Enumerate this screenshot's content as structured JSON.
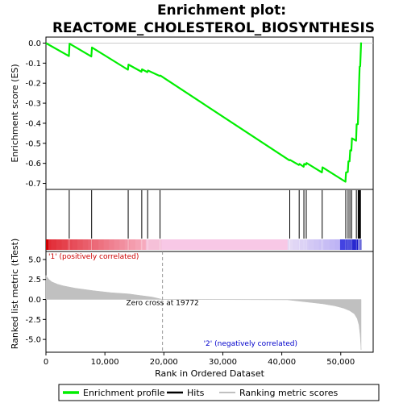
{
  "chart_data": {
    "type": "line",
    "title_line1": "Enrichment plot:",
    "title_line2": "REACTOME_CHOLESTEROL_BIOSYNTHESIS",
    "es_panel": {
      "ylabel": "Enrichment score (ES)",
      "ylim": [
        -0.73,
        0.03
      ],
      "yticks": [
        0.0,
        -0.1,
        -0.2,
        -0.3,
        -0.4,
        -0.5,
        -0.6,
        -0.7
      ],
      "ytick_labels": [
        "0.0",
        "-0.1",
        "-0.2",
        "-0.3",
        "-0.4",
        "-0.5",
        "-0.6",
        "-0.7"
      ],
      "color": "#00ee00",
      "points": [
        [
          0,
          0.0
        ],
        [
          3900,
          -0.065
        ],
        [
          4000,
          -0.003
        ],
        [
          7700,
          -0.067
        ],
        [
          7800,
          -0.022
        ],
        [
          13900,
          -0.133
        ],
        [
          14000,
          -0.107
        ],
        [
          16200,
          -0.143
        ],
        [
          16300,
          -0.131
        ],
        [
          17200,
          -0.145
        ],
        [
          17300,
          -0.137
        ],
        [
          19300,
          -0.164
        ],
        [
          19400,
          -0.162
        ],
        [
          41300,
          -0.585
        ],
        [
          41400,
          -0.583
        ],
        [
          42900,
          -0.608
        ],
        [
          43000,
          -0.603
        ],
        [
          43700,
          -0.617
        ],
        [
          43800,
          -0.603
        ],
        [
          44100,
          -0.606
        ],
        [
          44200,
          -0.598
        ],
        [
          46800,
          -0.645
        ],
        [
          46900,
          -0.62
        ],
        [
          50800,
          -0.692
        ],
        [
          50900,
          -0.645
        ],
        [
          51200,
          -0.643
        ],
        [
          51300,
          -0.59
        ],
        [
          51500,
          -0.59
        ],
        [
          51600,
          -0.535
        ],
        [
          51800,
          -0.536
        ],
        [
          51900,
          -0.475
        ],
        [
          52600,
          -0.487
        ],
        [
          52700,
          -0.405
        ],
        [
          52900,
          -0.405
        ],
        [
          53000,
          -0.315
        ],
        [
          53100,
          -0.215
        ],
        [
          53200,
          -0.118
        ],
        [
          53300,
          -0.115
        ],
        [
          53450,
          0.003
        ]
      ]
    },
    "hits": {
      "positions": [
        3950,
        7750,
        13950,
        16250,
        17250,
        19350,
        41350,
        42950,
        43750,
        44150,
        46850,
        50850,
        51250,
        51550,
        51850,
        52650,
        52950,
        53050,
        53150,
        53250,
        53350
      ]
    },
    "rank_panel": {
      "ylabel": "Ranked list metric (tTest)",
      "ylim": [
        -6.6,
        6.0
      ],
      "yticks": [
        5.0,
        2.5,
        0.0,
        -2.5,
        -5.0
      ],
      "ytick_labels": [
        "5.0",
        "2.5",
        "0.0",
        "-2.5",
        "-5.0"
      ],
      "color": "#c0c0c0",
      "points": [
        [
          0,
          3.0
        ],
        [
          500,
          2.5
        ],
        [
          1000,
          2.2
        ],
        [
          2000,
          1.9
        ],
        [
          3000,
          1.7
        ],
        [
          5000,
          1.4
        ],
        [
          8000,
          1.1
        ],
        [
          11000,
          0.85
        ],
        [
          14000,
          0.7
        ],
        [
          16000,
          0.5
        ],
        [
          18000,
          0.3
        ],
        [
          19772,
          0.0
        ],
        [
          41000,
          -0.05
        ],
        [
          44000,
          -0.3
        ],
        [
          47000,
          -0.55
        ],
        [
          49000,
          -0.8
        ],
        [
          50500,
          -1.1
        ],
        [
          51500,
          -1.4
        ],
        [
          52300,
          -1.8
        ],
        [
          52800,
          -2.4
        ],
        [
          53100,
          -3.2
        ],
        [
          53300,
          -4.5
        ],
        [
          53450,
          -6.3
        ],
        [
          53450,
          0.0
        ]
      ],
      "label_pos": "'1' (positively correlated)",
      "label_neg": "'2' (negatively correlated)",
      "zero_cross_label": "Zero cross at 19772",
      "zero_cross": 19772
    },
    "xaxis": {
      "xlabel": "Rank in Ordered Dataset",
      "xlim": [
        0,
        55500
      ],
      "xticks": [
        0,
        10000,
        20000,
        30000,
        40000,
        50000
      ],
      "xtick_labels": [
        "0",
        "10,000",
        "20,000",
        "30,000",
        "40,000",
        "50,000"
      ]
    },
    "legend": {
      "placement": "bottom",
      "items": [
        {
          "label": "Enrichment profile",
          "color": "#00ee00"
        },
        {
          "label": "Hits",
          "color": "#000000"
        },
        {
          "label": "Ranking metric scores",
          "color": "#c0c0c0"
        }
      ]
    },
    "colors": {
      "positive_label": "#cc0000",
      "negative_label": "#0000cc"
    }
  }
}
